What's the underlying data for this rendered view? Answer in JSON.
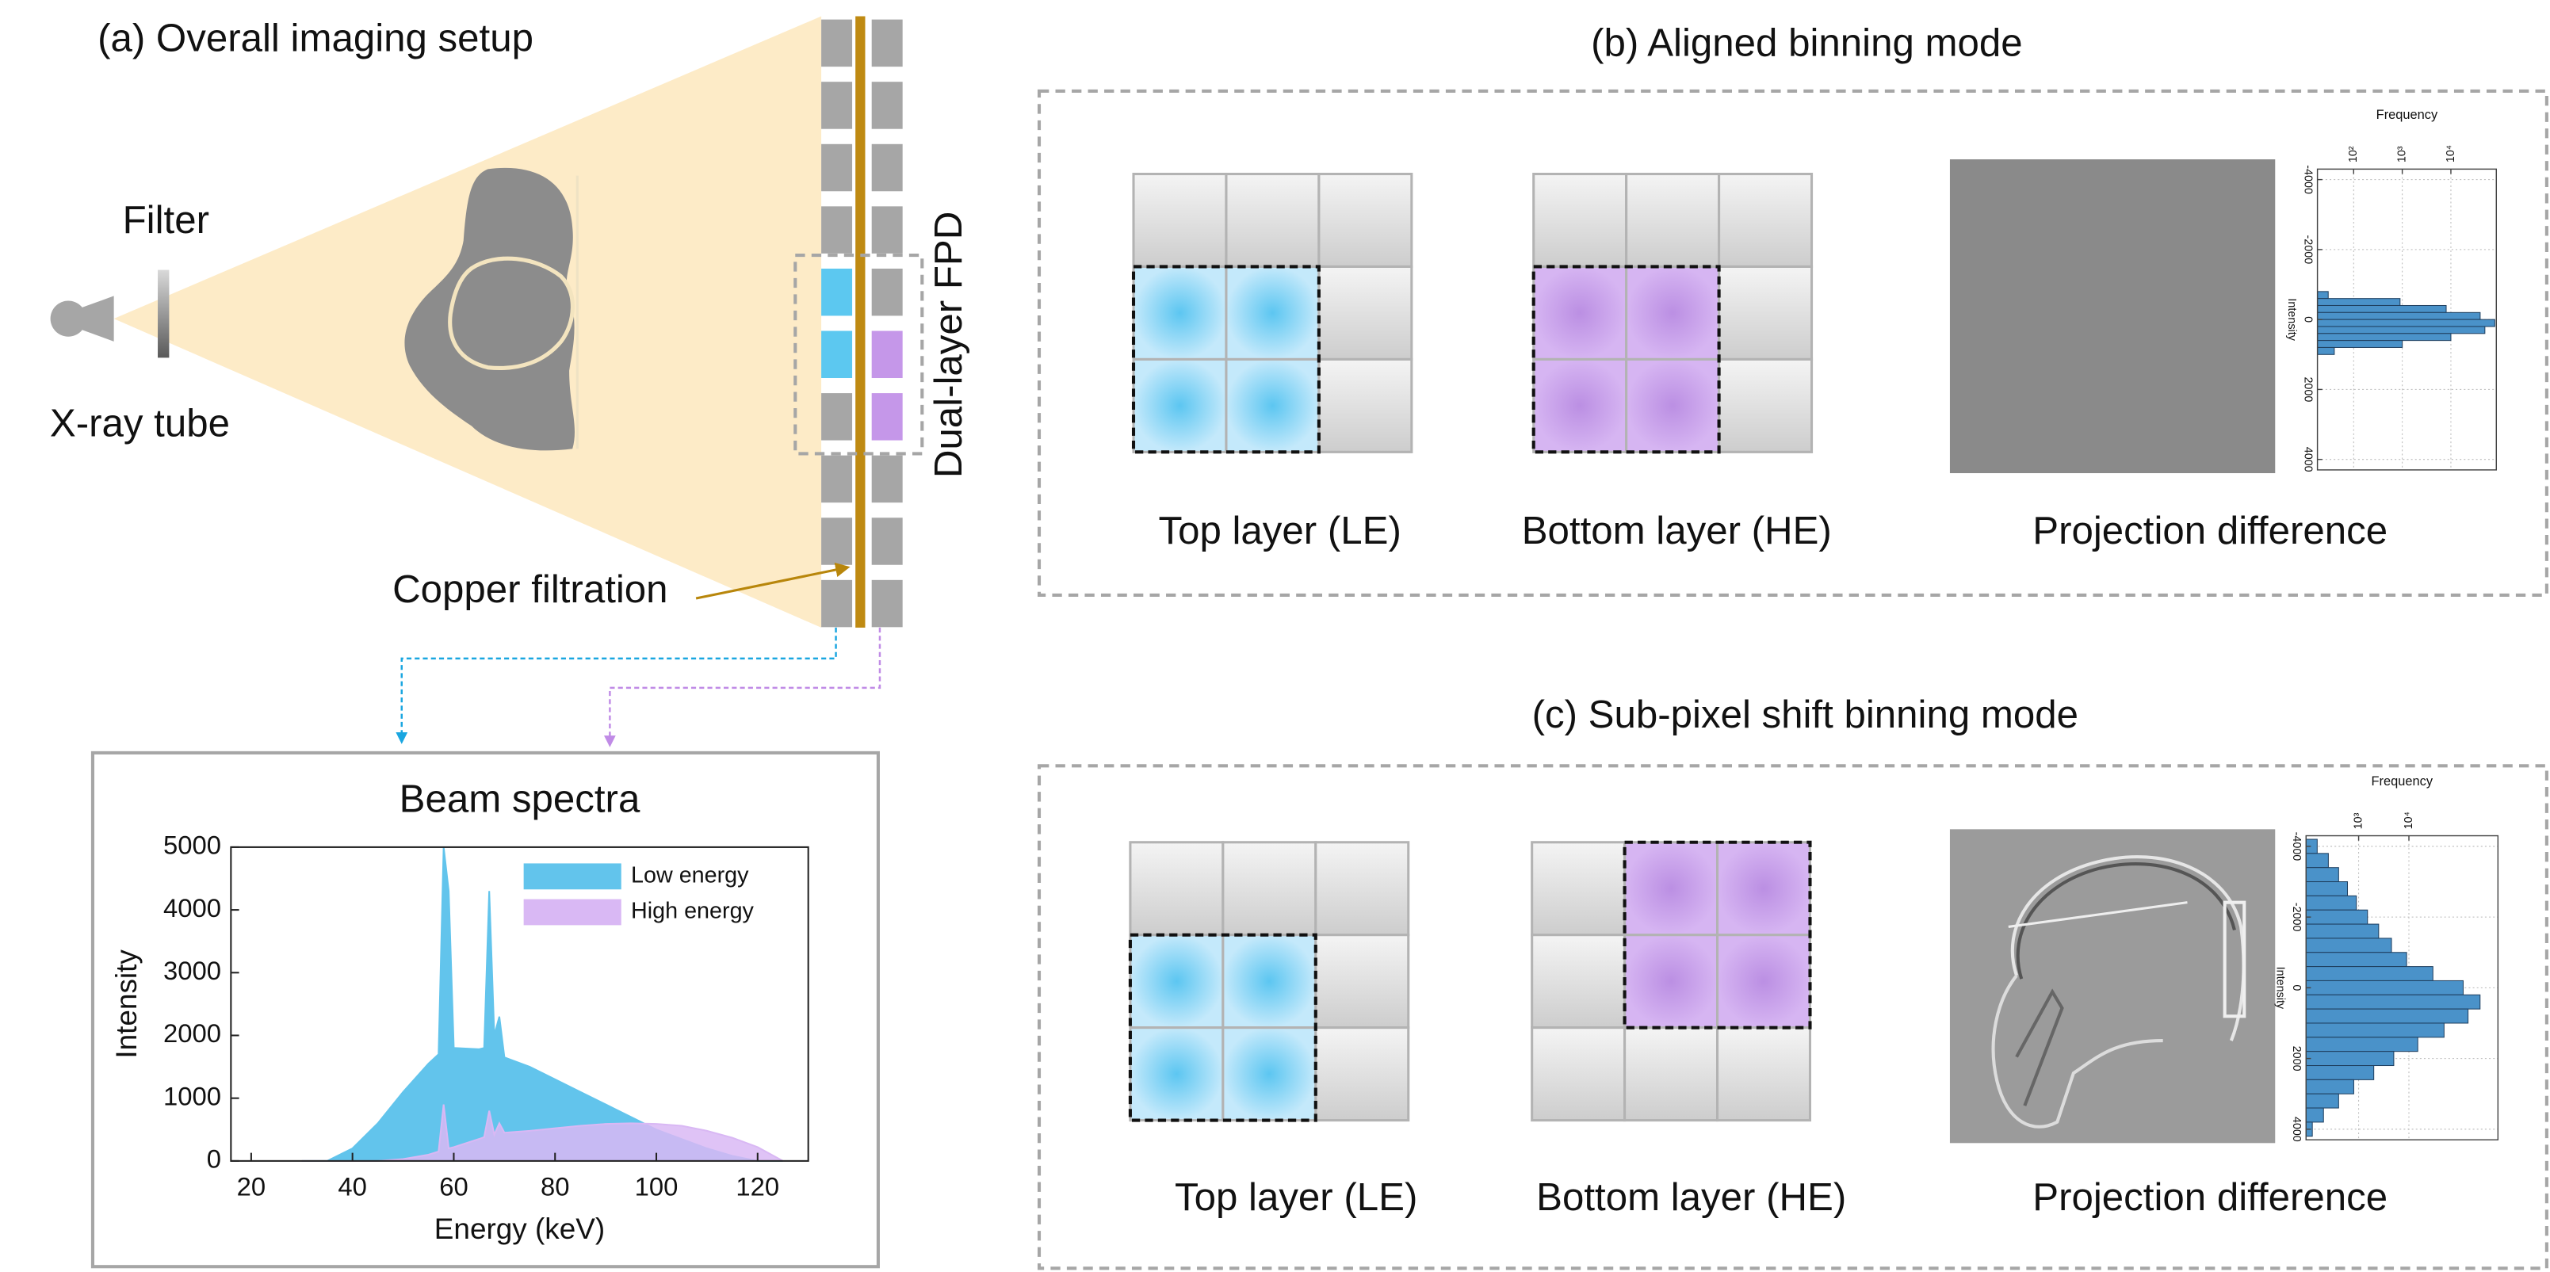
{
  "panel_a": {
    "title": "(a) Overall imaging setup",
    "filter_label": "Filter",
    "tube_label": "X-ray tube",
    "detector_label": "Dual-layer FPD",
    "copper_label": "Copper filtration"
  },
  "panel_b": {
    "title": "(b) Aligned binning mode",
    "top_label": "Top layer (LE)",
    "bottom_label": "Bottom layer (HE)",
    "difference_label": "Projection difference"
  },
  "panel_c": {
    "title": "(c) Sub-pixel shift binning mode",
    "top_label": "Top layer (LE)",
    "bottom_label": "Bottom layer (HE)",
    "difference_label": "Projection difference"
  },
  "chart_data": [
    {
      "type": "area",
      "title": "Beam spectra",
      "x_label": "Energy (keV)",
      "y_label": "Intensity",
      "x": [
        30,
        35,
        40,
        45,
        50,
        55,
        57,
        58,
        59,
        60,
        65,
        66,
        67,
        68,
        69,
        70,
        75,
        80,
        85,
        90,
        95,
        100,
        105,
        110,
        115,
        120,
        125
      ],
      "series": [
        {
          "name": "Low energy",
          "color": "#62c4ec",
          "values": [
            0,
            0,
            200,
            600,
            1100,
            1550,
            1700,
            5000,
            4300,
            1800,
            1780,
            1800,
            4300,
            2000,
            2300,
            1650,
            1500,
            1300,
            1100,
            900,
            700,
            500,
            350,
            200,
            80,
            0,
            0
          ]
        },
        {
          "name": "High energy",
          "color": "#d9b8f4",
          "values": [
            0,
            0,
            0,
            0,
            30,
            100,
            150,
            900,
            200,
            220,
            350,
            380,
            800,
            420,
            600,
            450,
            480,
            520,
            560,
            590,
            600,
            590,
            560,
            480,
            370,
            220,
            0
          ]
        }
      ],
      "xlim": [
        16,
        130
      ],
      "ylim": [
        0,
        5000
      ],
      "xticks": [
        20,
        40,
        60,
        80,
        100,
        120
      ],
      "yticks": [
        0,
        1000,
        2000,
        3000,
        4000,
        5000
      ],
      "legend": "upper right"
    },
    {
      "type": "histogram",
      "orientation": "horizontal",
      "x_label": "Frequency",
      "y_label": "Intensity",
      "bins": [
        -800,
        -600,
        -400,
        -200,
        0,
        200,
        400,
        600,
        800,
        1000
      ],
      "values": [
        30,
        900,
        8000,
        40000,
        80000,
        50000,
        10000,
        1000,
        40
      ],
      "color": "#4a92c9",
      "xscale": "log",
      "xlim": [
        18,
        86000
      ],
      "ylim": [
        -4300,
        4300
      ],
      "y_inverted": true,
      "grid": true,
      "xticks": [
        {
          "value": 100,
          "label": "10²"
        },
        {
          "value": 1000,
          "label": "10³"
        },
        {
          "value": 10000,
          "label": "10⁴"
        }
      ],
      "yticks": [
        -4000,
        -2000,
        0,
        2000,
        4000
      ]
    },
    {
      "type": "histogram",
      "orientation": "horizontal",
      "x_label": "Frequency",
      "y_label": "Intensity",
      "bins": [
        -4200,
        -3800,
        -3400,
        -3000,
        -2600,
        -2200,
        -1800,
        -1400,
        -1000,
        -600,
        -200,
        200,
        600,
        1000,
        1400,
        1800,
        2200,
        2600,
        3000,
        3400,
        3800,
        4200
      ],
      "values": [
        150,
        250,
        400,
        600,
        900,
        1500,
        2500,
        4500,
        9000,
        30000,
        120000,
        260000,
        150000,
        50000,
        15000,
        5000,
        2000,
        800,
        400,
        200,
        120
      ],
      "color": "#4a92c9",
      "xscale": "log",
      "xlim": [
        90,
        590000
      ],
      "ylim": [
        -4300,
        4300
      ],
      "y_inverted": true,
      "grid": true,
      "xticks": [
        {
          "value": 1000,
          "label": "10³"
        },
        {
          "value": 10000,
          "label": "10⁴"
        }
      ],
      "yticks": [
        -4000,
        -2000,
        0,
        2000,
        4000
      ]
    }
  ]
}
